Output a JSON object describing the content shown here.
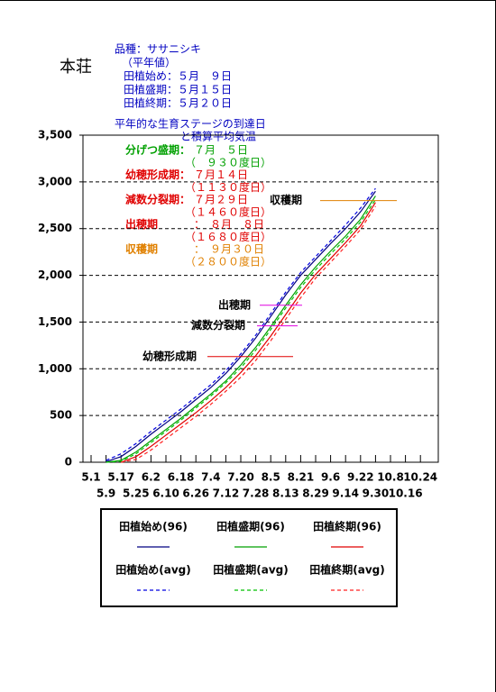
{
  "header": {
    "station": "本荘",
    "variety": "品種：ササニシキ",
    "note": "（平年値）",
    "planting": [
      "田植始め：５月　９日",
      "田植盛期：５月１５日",
      "田植終期：５月２０日"
    ]
  },
  "stage_box": {
    "title": [
      "平年的な生育ステージの到達日",
      "と積算平均気温"
    ],
    "rows": [
      {
        "name": "分げつ盛期：",
        "date": "７月　５日",
        "gdd": "（　９３０度日）",
        "color": "#00a000"
      },
      {
        "name": "幼穂形成期：",
        "date": "７月１４日",
        "gdd": "（１１３０度日）",
        "color": "#e00000"
      },
      {
        "name": "減数分裂期：",
        "date": "７月２９日",
        "gdd": "（１４６０度日）",
        "color": "#e00000"
      },
      {
        "name": "出穂期",
        "date": "：　８月　８日",
        "gdd": "（１６８０度日）",
        "color": "#e00000"
      },
      {
        "name": "収穫期",
        "date": "：　９月３０日",
        "gdd": "（２８００度日）",
        "color": "#e08000"
      }
    ]
  },
  "chart_data": {
    "type": "line",
    "categories": [
      "5.1",
      "5.9",
      "5.17",
      "5.25",
      "6.2",
      "6.10",
      "6.18",
      "6.26",
      "7.4",
      "7.12",
      "7.20",
      "7.28",
      "8.5",
      "8.13",
      "8.21",
      "8.29",
      "9.6",
      "9.14",
      "9.22",
      "9.30",
      "10.8",
      "10.16",
      "10.24"
    ],
    "ylim": [
      0,
      3500
    ],
    "yticks": [
      0,
      500,
      {
        "value": 1000,
        "label": "1,000"
      },
      {
        "value": 1500,
        "label": "1,500"
      },
      {
        "value": 2000,
        "label": "2,000"
      },
      {
        "value": 2500,
        "label": "2,500"
      },
      {
        "value": 3000,
        "label": "3,000"
      },
      {
        "value": 3500,
        "label": "3,500"
      }
    ],
    "grid": true,
    "series": [
      {
        "name": "田植始め(96)",
        "color": "#000080",
        "dash": false,
        "values": [
          null,
          5,
          60,
          170,
          300,
          420,
          540,
          670,
          800,
          950,
          1130,
          1330,
          1560,
          1790,
          2000,
          2170,
          2340,
          2500,
          2680,
          2900,
          null,
          null,
          null
        ]
      },
      {
        "name": "田植盛期(96)",
        "color": "#00a000",
        "dash": false,
        "values": [
          null,
          0,
          20,
          110,
          230,
          350,
          470,
          600,
          730,
          870,
          1040,
          1230,
          1450,
          1680,
          1900,
          2090,
          2260,
          2420,
          2600,
          2850,
          null,
          null,
          null
        ]
      },
      {
        "name": "田植終期(96)",
        "color": "#e00000",
        "dash": false,
        "values": [
          null,
          null,
          0,
          60,
          170,
          290,
          410,
          530,
          660,
          800,
          960,
          1140,
          1350,
          1580,
          1810,
          2010,
          2180,
          2350,
          2530,
          2780,
          null,
          null,
          null
        ]
      },
      {
        "name": "田植始め(avg)",
        "color": "#0000e0",
        "dash": true,
        "values": [
          null,
          20,
          90,
          200,
          330,
          450,
          570,
          700,
          830,
          980,
          1160,
          1360,
          1590,
          1820,
          2030,
          2200,
          2370,
          2540,
          2720,
          2930,
          null,
          null,
          null
        ]
      },
      {
        "name": "田植盛期(avg)",
        "color": "#00c000",
        "dash": true,
        "values": [
          null,
          0,
          10,
          90,
          210,
          330,
          450,
          580,
          710,
          850,
          1010,
          1200,
          1420,
          1650,
          1870,
          2060,
          2230,
          2390,
          2570,
          2810,
          null,
          null,
          null
        ]
      },
      {
        "name": "田植終期(avg)",
        "color": "#ff2020",
        "dash": true,
        "values": [
          null,
          null,
          0,
          30,
          130,
          250,
          370,
          490,
          620,
          760,
          910,
          1090,
          1300,
          1530,
          1760,
          1970,
          2140,
          2310,
          2490,
          2740,
          null,
          null,
          null
        ]
      }
    ],
    "annotations": [
      {
        "label": "収穫期",
        "value": 2800,
        "color": "#e08000"
      },
      {
        "label": "出穂期",
        "value": 1680,
        "color": "#e000e0"
      },
      {
        "label": "減数分裂期",
        "value": 1460,
        "color": "#e000e0"
      },
      {
        "label": "幼穂形成期",
        "value": 1130,
        "color": "#e00000"
      }
    ]
  }
}
